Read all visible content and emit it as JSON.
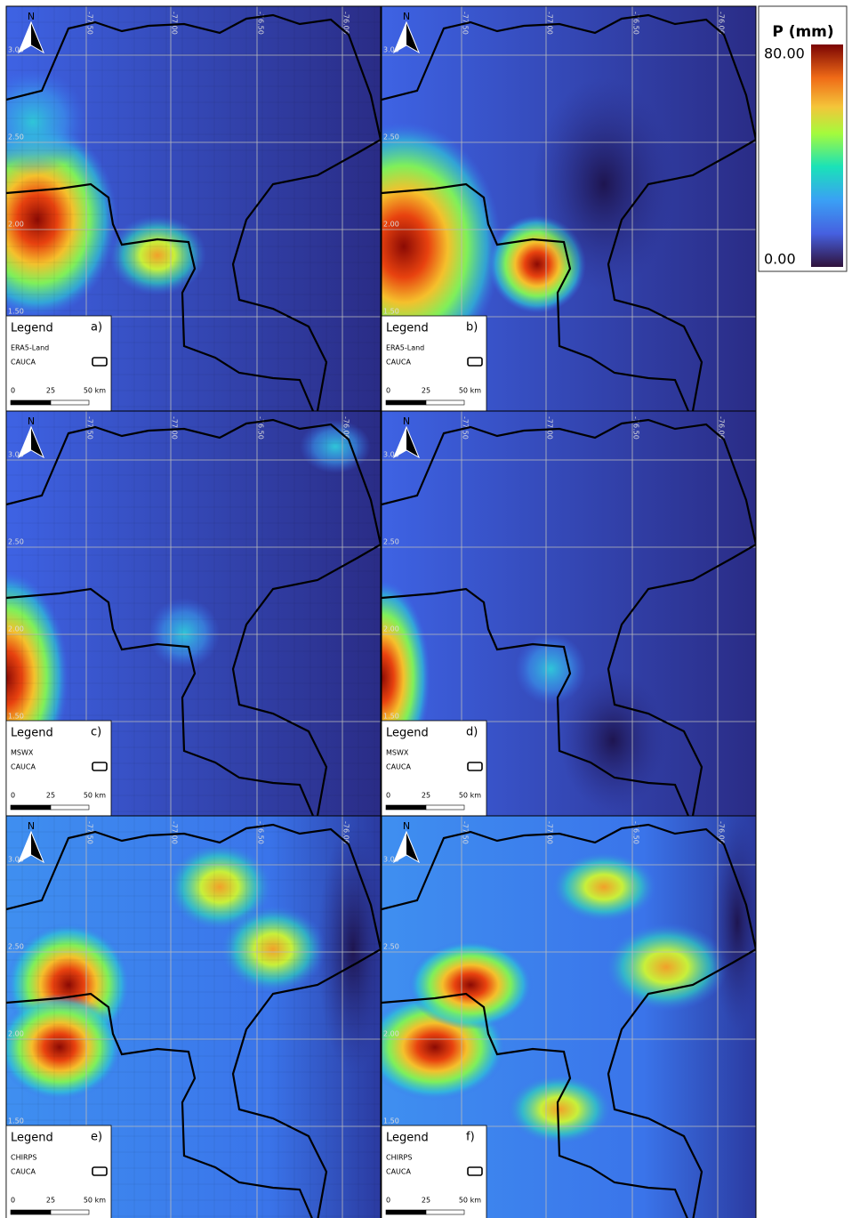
{
  "colorbar": {
    "title": "P (mm)",
    "max": "80.00",
    "min": "0.00"
  },
  "grid_labels": {
    "lon": [
      "-77.50",
      "-77.00",
      "-76.50",
      "-76.00"
    ],
    "lat": [
      "3.00",
      "2.50",
      "2.00",
      "1.50"
    ]
  },
  "map_legend": {
    "title": "Legend",
    "layer": "CAUCA",
    "north": "N",
    "scale": [
      "0",
      "25",
      "50 km"
    ]
  },
  "panels": [
    {
      "letter": "a)",
      "dataset": "ERA5-Land"
    },
    {
      "letter": "b)",
      "dataset": "ERA5-Land"
    },
    {
      "letter": "c)",
      "dataset": "MSWX"
    },
    {
      "letter": "d)",
      "dataset": "MSWX"
    },
    {
      "letter": "e)",
      "dataset": "CHIRPS"
    },
    {
      "letter": "f)",
      "dataset": "CHIRPS"
    }
  ]
}
